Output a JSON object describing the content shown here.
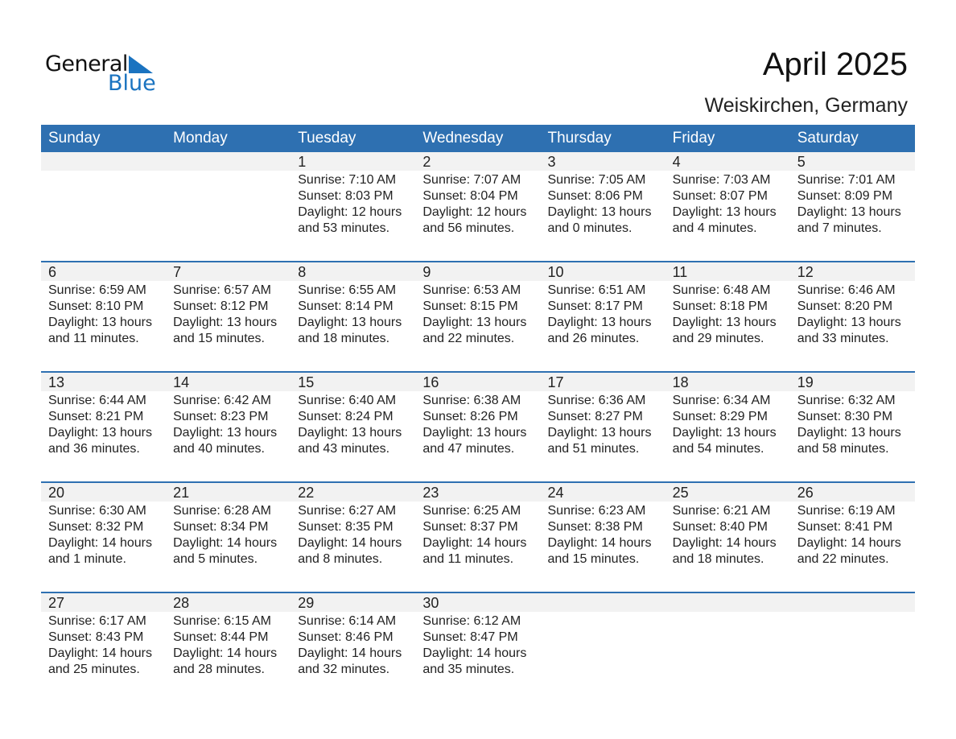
{
  "logo": {
    "general": "General",
    "blue": "Blue"
  },
  "title": "April 2025",
  "location": "Weiskirchen, Germany",
  "colors": {
    "header": "#2e70b1",
    "day_band": "#f2f2f2",
    "logo_blue": "#1a73c0"
  },
  "weekdays": [
    "Sunday",
    "Monday",
    "Tuesday",
    "Wednesday",
    "Thursday",
    "Friday",
    "Saturday"
  ],
  "weeks": [
    [
      null,
      null,
      {
        "day": "1",
        "sunrise": "Sunrise: 7:10 AM",
        "sunset": "Sunset: 8:03 PM",
        "daylight": "Daylight: 12 hours",
        "minutes": "and 53 minutes."
      },
      {
        "day": "2",
        "sunrise": "Sunrise: 7:07 AM",
        "sunset": "Sunset: 8:04 PM",
        "daylight": "Daylight: 12 hours",
        "minutes": "and 56 minutes."
      },
      {
        "day": "3",
        "sunrise": "Sunrise: 7:05 AM",
        "sunset": "Sunset: 8:06 PM",
        "daylight": "Daylight: 13 hours",
        "minutes": "and 0 minutes."
      },
      {
        "day": "4",
        "sunrise": "Sunrise: 7:03 AM",
        "sunset": "Sunset: 8:07 PM",
        "daylight": "Daylight: 13 hours",
        "minutes": "and 4 minutes."
      },
      {
        "day": "5",
        "sunrise": "Sunrise: 7:01 AM",
        "sunset": "Sunset: 8:09 PM",
        "daylight": "Daylight: 13 hours",
        "minutes": "and 7 minutes."
      }
    ],
    [
      {
        "day": "6",
        "sunrise": "Sunrise: 6:59 AM",
        "sunset": "Sunset: 8:10 PM",
        "daylight": "Daylight: 13 hours",
        "minutes": "and 11 minutes."
      },
      {
        "day": "7",
        "sunrise": "Sunrise: 6:57 AM",
        "sunset": "Sunset: 8:12 PM",
        "daylight": "Daylight: 13 hours",
        "minutes": "and 15 minutes."
      },
      {
        "day": "8",
        "sunrise": "Sunrise: 6:55 AM",
        "sunset": "Sunset: 8:14 PM",
        "daylight": "Daylight: 13 hours",
        "minutes": "and 18 minutes."
      },
      {
        "day": "9",
        "sunrise": "Sunrise: 6:53 AM",
        "sunset": "Sunset: 8:15 PM",
        "daylight": "Daylight: 13 hours",
        "minutes": "and 22 minutes."
      },
      {
        "day": "10",
        "sunrise": "Sunrise: 6:51 AM",
        "sunset": "Sunset: 8:17 PM",
        "daylight": "Daylight: 13 hours",
        "minutes": "and 26 minutes."
      },
      {
        "day": "11",
        "sunrise": "Sunrise: 6:48 AM",
        "sunset": "Sunset: 8:18 PM",
        "daylight": "Daylight: 13 hours",
        "minutes": "and 29 minutes."
      },
      {
        "day": "12",
        "sunrise": "Sunrise: 6:46 AM",
        "sunset": "Sunset: 8:20 PM",
        "daylight": "Daylight: 13 hours",
        "minutes": "and 33 minutes."
      }
    ],
    [
      {
        "day": "13",
        "sunrise": "Sunrise: 6:44 AM",
        "sunset": "Sunset: 8:21 PM",
        "daylight": "Daylight: 13 hours",
        "minutes": "and 36 minutes."
      },
      {
        "day": "14",
        "sunrise": "Sunrise: 6:42 AM",
        "sunset": "Sunset: 8:23 PM",
        "daylight": "Daylight: 13 hours",
        "minutes": "and 40 minutes."
      },
      {
        "day": "15",
        "sunrise": "Sunrise: 6:40 AM",
        "sunset": "Sunset: 8:24 PM",
        "daylight": "Daylight: 13 hours",
        "minutes": "and 43 minutes."
      },
      {
        "day": "16",
        "sunrise": "Sunrise: 6:38 AM",
        "sunset": "Sunset: 8:26 PM",
        "daylight": "Daylight: 13 hours",
        "minutes": "and 47 minutes."
      },
      {
        "day": "17",
        "sunrise": "Sunrise: 6:36 AM",
        "sunset": "Sunset: 8:27 PM",
        "daylight": "Daylight: 13 hours",
        "minutes": "and 51 minutes."
      },
      {
        "day": "18",
        "sunrise": "Sunrise: 6:34 AM",
        "sunset": "Sunset: 8:29 PM",
        "daylight": "Daylight: 13 hours",
        "minutes": "and 54 minutes."
      },
      {
        "day": "19",
        "sunrise": "Sunrise: 6:32 AM",
        "sunset": "Sunset: 8:30 PM",
        "daylight": "Daylight: 13 hours",
        "minutes": "and 58 minutes."
      }
    ],
    [
      {
        "day": "20",
        "sunrise": "Sunrise: 6:30 AM",
        "sunset": "Sunset: 8:32 PM",
        "daylight": "Daylight: 14 hours",
        "minutes": "and 1 minute."
      },
      {
        "day": "21",
        "sunrise": "Sunrise: 6:28 AM",
        "sunset": "Sunset: 8:34 PM",
        "daylight": "Daylight: 14 hours",
        "minutes": "and 5 minutes."
      },
      {
        "day": "22",
        "sunrise": "Sunrise: 6:27 AM",
        "sunset": "Sunset: 8:35 PM",
        "daylight": "Daylight: 14 hours",
        "minutes": "and 8 minutes."
      },
      {
        "day": "23",
        "sunrise": "Sunrise: 6:25 AM",
        "sunset": "Sunset: 8:37 PM",
        "daylight": "Daylight: 14 hours",
        "minutes": "and 11 minutes."
      },
      {
        "day": "24",
        "sunrise": "Sunrise: 6:23 AM",
        "sunset": "Sunset: 8:38 PM",
        "daylight": "Daylight: 14 hours",
        "minutes": "and 15 minutes."
      },
      {
        "day": "25",
        "sunrise": "Sunrise: 6:21 AM",
        "sunset": "Sunset: 8:40 PM",
        "daylight": "Daylight: 14 hours",
        "minutes": "and 18 minutes."
      },
      {
        "day": "26",
        "sunrise": "Sunrise: 6:19 AM",
        "sunset": "Sunset: 8:41 PM",
        "daylight": "Daylight: 14 hours",
        "minutes": "and 22 minutes."
      }
    ],
    [
      {
        "day": "27",
        "sunrise": "Sunrise: 6:17 AM",
        "sunset": "Sunset: 8:43 PM",
        "daylight": "Daylight: 14 hours",
        "minutes": "and 25 minutes."
      },
      {
        "day": "28",
        "sunrise": "Sunrise: 6:15 AM",
        "sunset": "Sunset: 8:44 PM",
        "daylight": "Daylight: 14 hours",
        "minutes": "and 28 minutes."
      },
      {
        "day": "29",
        "sunrise": "Sunrise: 6:14 AM",
        "sunset": "Sunset: 8:46 PM",
        "daylight": "Daylight: 14 hours",
        "minutes": "and 32 minutes."
      },
      {
        "day": "30",
        "sunrise": "Sunrise: 6:12 AM",
        "sunset": "Sunset: 8:47 PM",
        "daylight": "Daylight: 14 hours",
        "minutes": "and 35 minutes."
      },
      null,
      null,
      null
    ]
  ]
}
